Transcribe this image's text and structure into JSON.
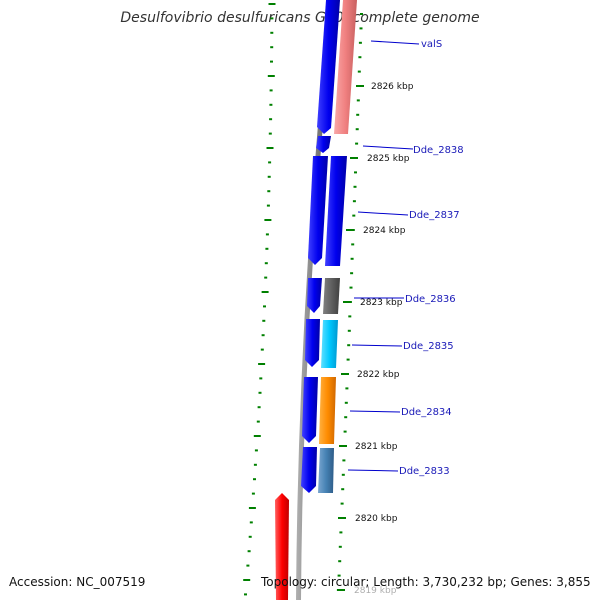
{
  "title": "Desulfovibrio desulfuricans G20, complete genome",
  "accession": "Accession: NC_007519",
  "summary": "Topology: circular; Length: 3,730,232 bp; Genes: 3,855",
  "colors": {
    "backbone": "#808080",
    "tick": "#008000",
    "cds_blue": "#0000ee",
    "gene_label": "#1a1ab8",
    "label_line": "#0000cc",
    "gene_valS": "#f08080",
    "gene_dde_2838": "#0000ee",
    "gene_dde_2837": "#0000ee",
    "gene_dde_2836": "#606060",
    "gene_dde_2835": "#00c8ff",
    "gene_dde_2834": "#ff8c00",
    "gene_dde_2833": "#4682b4",
    "feature_red": "#ff0000"
  },
  "ticks": [
    "2826 kbp",
    "2825 kbp",
    "2824 kbp",
    "2823 kbp",
    "2822 kbp",
    "2821 kbp",
    "2820 kbp",
    "2819 kbp"
  ],
  "genes": [
    "valS",
    "Dde_2838",
    "Dde_2837",
    "Dde_2836",
    "Dde_2835",
    "Dde_2834",
    "Dde_2833"
  ]
}
